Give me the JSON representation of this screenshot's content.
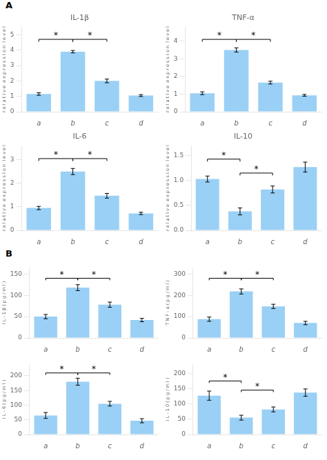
{
  "chart_data": [
    {
      "type": "bar",
      "panel_label": "A",
      "title": "IL-1β",
      "ylabel": "r e l a t i v e  e x p r e s s i o n  l e v e l",
      "categories": [
        "a",
        "b",
        "c",
        "d"
      ],
      "values": [
        1.15,
        3.9,
        2.0,
        1.05
      ],
      "errors": [
        0.08,
        0.08,
        0.12,
        0.06
      ],
      "ylim": [
        0,
        5.5
      ],
      "yticks": [
        0,
        1,
        2,
        3,
        4,
        5
      ],
      "grid": false,
      "annotations": [
        {
          "from": "a",
          "to": "b",
          "y": 4.7,
          "label": "*"
        },
        {
          "from": "b",
          "to": "c",
          "y": 4.7,
          "label": "*"
        }
      ]
    },
    {
      "type": "bar",
      "title": "TNF-α",
      "ylabel": "r e l a t i v e  e x p r e s s i o n  l e v e l",
      "categories": [
        "a",
        "b",
        "c",
        "d"
      ],
      "values": [
        1.05,
        3.5,
        1.65,
        0.93
      ],
      "errors": [
        0.08,
        0.12,
        0.08,
        0.05
      ],
      "ylim": [
        0,
        4.8
      ],
      "yticks": [
        0,
        1,
        2,
        3,
        4
      ],
      "grid": false,
      "annotations": [
        {
          "from": "a",
          "to": "b",
          "y": 4.1,
          "label": "*"
        },
        {
          "from": "b",
          "to": "c",
          "y": 4.1,
          "label": "*"
        }
      ]
    },
    {
      "type": "bar",
      "title": "IL-6",
      "ylabel": "r e l a t i v e  e x p r e s s i o n  l e v e l",
      "categories": [
        "a",
        "b",
        "c",
        "d"
      ],
      "values": [
        0.95,
        2.5,
        1.47,
        0.72
      ],
      "errors": [
        0.07,
        0.13,
        0.1,
        0.05
      ],
      "ylim": [
        0,
        3.6
      ],
      "yticks": [
        0,
        1,
        2,
        3
      ],
      "grid": false,
      "annotations": [
        {
          "from": "a",
          "to": "b",
          "y": 3.05,
          "label": "*"
        },
        {
          "from": "b",
          "to": "c",
          "y": 3.05,
          "label": "*"
        }
      ]
    },
    {
      "type": "bar",
      "title": "IL-10",
      "ylabel": "r e l a t i v e  e x p r e s s i o n  l e v e l",
      "categories": [
        "a",
        "b",
        "c",
        "d"
      ],
      "values": [
        1.03,
        0.38,
        0.82,
        1.27
      ],
      "errors": [
        0.06,
        0.07,
        0.07,
        0.1
      ],
      "ylim": [
        0,
        1.7
      ],
      "yticks": [
        {
          "value": 0,
          "label": "0.0"
        },
        0.5,
        {
          "value": 1,
          "label": "1.0"
        },
        1.5
      ],
      "grid": false,
      "annotations": [
        {
          "from": "a",
          "to": "b",
          "y": 1.43,
          "label": "*"
        },
        {
          "from": "b",
          "to": "c",
          "y": 1.15,
          "label": "*"
        }
      ]
    },
    {
      "type": "bar",
      "panel_label": "B",
      "ylabel": "I L - 1 β ( p g / m l )",
      "categories": [
        "a",
        "b",
        "c",
        "d"
      ],
      "values": [
        50,
        118,
        78,
        42
      ],
      "errors": [
        5,
        7,
        6,
        4
      ],
      "ylim": [
        0,
        165
      ],
      "yticks": [
        0,
        50,
        100,
        150
      ],
      "grid": false,
      "annotations": [
        {
          "from": "a",
          "to": "b",
          "y": 140,
          "label": "*"
        },
        {
          "from": "b",
          "to": "c",
          "y": 140,
          "label": "*"
        }
      ]
    },
    {
      "type": "bar",
      "ylabel": "T N F - α ( p g / m l )",
      "categories": [
        "a",
        "b",
        "c",
        "d"
      ],
      "values": [
        88,
        218,
        148,
        70
      ],
      "errors": [
        10,
        12,
        10,
        8
      ],
      "ylim": [
        0,
        330
      ],
      "yticks": [
        0,
        100,
        200,
        300
      ],
      "grid": false,
      "annotations": [
        {
          "from": "a",
          "to": "b",
          "y": 280,
          "label": "*"
        },
        {
          "from": "b",
          "to": "c",
          "y": 280,
          "label": "*"
        }
      ]
    },
    {
      "type": "bar",
      "ylabel": "I L - 6 ( p g / m l )",
      "categories": [
        "a",
        "b",
        "c",
        "d"
      ],
      "values": [
        65,
        180,
        105,
        47
      ],
      "errors": [
        10,
        12,
        8,
        7
      ],
      "ylim": [
        0,
        240
      ],
      "yticks": [
        0,
        50,
        100,
        150,
        200
      ],
      "grid": false,
      "annotations": [
        {
          "from": "a",
          "to": "b",
          "y": 210,
          "label": "*"
        },
        {
          "from": "b",
          "to": "c",
          "y": 210,
          "label": "*"
        }
      ]
    },
    {
      "type": "bar",
      "ylabel": "I L - 1 0 ( p g / m l )",
      "categories": [
        "a",
        "b",
        "c",
        "d"
      ],
      "values": [
        127,
        55,
        82,
        137
      ],
      "errors": [
        15,
        8,
        8,
        12
      ],
      "ylim": [
        0,
        230
      ],
      "yticks": [
        0,
        50,
        100,
        150,
        200
      ],
      "grid": false,
      "annotations": [
        {
          "from": "a",
          "to": "b",
          "y": 175,
          "label": "*"
        },
        {
          "from": "b",
          "to": "c",
          "y": 145,
          "label": "*"
        }
      ]
    }
  ]
}
